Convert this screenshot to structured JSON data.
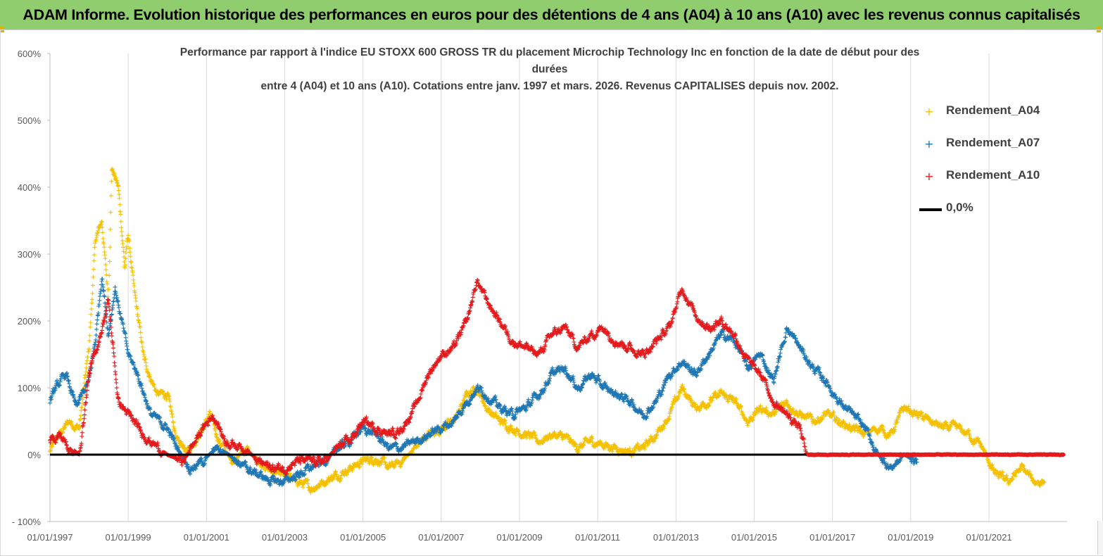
{
  "banner": {
    "title": "ADAM Informe. Evolution historique des performances en euros pour des détentions de 4 ans (A04) à 10 ans (A10) avec les revenus connus capitalisés"
  },
  "chart_data": {
    "type": "scatter",
    "title_lines": [
      "Performance par rapport à l'indice EU STOXX 600 GROSS TR  du placement Microchip Technology Inc en fonction de la date de début pour des",
      "durées",
      "entre 4 (A04) et 10 ans (A10).  Cotations entre janv. 1997 et mars. 2026. Revenus CAPITALISES depuis nov. 2002."
    ],
    "xlabel": "",
    "ylabel": "",
    "x_range": [
      "1997-01-01",
      "2022-12-31"
    ],
    "ylim": [
      -100,
      600
    ],
    "y_ticks": [
      600,
      500,
      400,
      300,
      200,
      100,
      0,
      -100
    ],
    "y_tick_labels": [
      "600%",
      "500%",
      "400%",
      "300%",
      "200%",
      "100%",
      "0%",
      "- 100%"
    ],
    "x_tick_labels": [
      "01/01/1997",
      "01/01/1999",
      "01/01/2001",
      "01/01/2003",
      "01/01/2005",
      "01/01/2007",
      "01/01/2009",
      "01/01/2011",
      "01/01/2013",
      "01/01/2015",
      "01/01/2017",
      "01/01/2019",
      "01/01/2021"
    ],
    "grid": "vertical",
    "legend_position": "right",
    "series": [
      {
        "name": "Rendement_A04",
        "color": "#f5c000",
        "marker": "plus",
        "points": [
          [
            "1997-01",
            5
          ],
          [
            "1997-04",
            30
          ],
          [
            "1997-07",
            50
          ],
          [
            "1997-10",
            40
          ],
          [
            "1998-01",
            160
          ],
          [
            "1998-03",
            320
          ],
          [
            "1998-05",
            350
          ],
          [
            "1998-07",
            230
          ],
          [
            "1998-08",
            430
          ],
          [
            "1998-10",
            400
          ],
          [
            "1998-12",
            280
          ],
          [
            "1999-01",
            330
          ],
          [
            "1999-03",
            240
          ],
          [
            "1999-06",
            140
          ],
          [
            "1999-10",
            90
          ],
          [
            "2000-01",
            90
          ],
          [
            "2000-04",
            20
          ],
          [
            "2000-08",
            10
          ],
          [
            "2000-12",
            40
          ],
          [
            "2001-02",
            60
          ],
          [
            "2001-05",
            20
          ],
          [
            "2001-09",
            -10
          ],
          [
            "2002-01",
            10
          ],
          [
            "2002-05",
            -10
          ],
          [
            "2002-09",
            -30
          ],
          [
            "2003-01",
            -30
          ],
          [
            "2003-05",
            -40
          ],
          [
            "2003-09",
            -50
          ],
          [
            "2004-01",
            -40
          ],
          [
            "2004-05",
            -30
          ],
          [
            "2004-09",
            -20
          ],
          [
            "2005-01",
            -10
          ],
          [
            "2005-05",
            -5
          ],
          [
            "2005-09",
            -20
          ],
          [
            "2006-01",
            -10
          ],
          [
            "2006-05",
            10
          ],
          [
            "2006-09",
            30
          ],
          [
            "2007-01",
            40
          ],
          [
            "2007-05",
            50
          ],
          [
            "2007-09",
            90
          ],
          [
            "2007-12",
            100
          ],
          [
            "2008-03",
            70
          ],
          [
            "2008-07",
            50
          ],
          [
            "2008-11",
            40
          ],
          [
            "2009-03",
            30
          ],
          [
            "2009-07",
            20
          ],
          [
            "2009-11",
            30
          ],
          [
            "2010-03",
            25
          ],
          [
            "2010-07",
            10
          ],
          [
            "2010-11",
            20
          ],
          [
            "2011-03",
            15
          ],
          [
            "2011-07",
            10
          ],
          [
            "2011-11",
            5
          ],
          [
            "2012-03",
            10
          ],
          [
            "2012-07",
            30
          ],
          [
            "2012-11",
            60
          ],
          [
            "2013-03",
            100
          ],
          [
            "2013-07",
            70
          ],
          [
            "2013-11",
            80
          ],
          [
            "2014-03",
            90
          ],
          [
            "2014-07",
            80
          ],
          [
            "2014-11",
            50
          ],
          [
            "2015-03",
            70
          ],
          [
            "2015-07",
            60
          ],
          [
            "2015-11",
            80
          ],
          [
            "2016-03",
            60
          ],
          [
            "2016-07",
            50
          ],
          [
            "2016-11",
            60
          ],
          [
            "2017-03",
            50
          ],
          [
            "2017-07",
            40
          ],
          [
            "2017-11",
            30
          ],
          [
            "2018-03",
            40
          ],
          [
            "2018-07",
            30
          ],
          [
            "2018-11",
            70
          ],
          [
            "2019-03",
            60
          ],
          [
            "2019-07",
            50
          ],
          [
            "2019-11",
            40
          ],
          [
            "2020-03",
            40
          ],
          [
            "2020-07",
            30
          ],
          [
            "2020-11",
            10
          ],
          [
            "2021-03",
            -30
          ],
          [
            "2021-07",
            -40
          ],
          [
            "2021-11",
            -20
          ],
          [
            "2022-03",
            -40
          ],
          [
            "2022-06",
            -40
          ]
        ]
      },
      {
        "name": "Rendement_A07",
        "color": "#1f77b4",
        "marker": "plus",
        "points": [
          [
            "1997-01",
            80
          ],
          [
            "1997-03",
            100
          ],
          [
            "1997-06",
            120
          ],
          [
            "1997-09",
            70
          ],
          [
            "1998-01",
            110
          ],
          [
            "1998-03",
            170
          ],
          [
            "1998-05",
            270
          ],
          [
            "1998-07",
            180
          ],
          [
            "1998-09",
            250
          ],
          [
            "1998-11",
            200
          ],
          [
            "1999-01",
            150
          ],
          [
            "1999-04",
            120
          ],
          [
            "1999-08",
            60
          ],
          [
            "2000-01",
            40
          ],
          [
            "2000-04",
            10
          ],
          [
            "2000-08",
            -20
          ],
          [
            "2000-12",
            -10
          ],
          [
            "2001-04",
            10
          ],
          [
            "2001-08",
            0
          ],
          [
            "2002-01",
            -20
          ],
          [
            "2002-05",
            -30
          ],
          [
            "2002-09",
            -40
          ],
          [
            "2003-01",
            -40
          ],
          [
            "2003-05",
            -30
          ],
          [
            "2003-09",
            -20
          ],
          [
            "2004-01",
            -10
          ],
          [
            "2004-05",
            10
          ],
          [
            "2004-09",
            20
          ],
          [
            "2005-01",
            40
          ],
          [
            "2005-05",
            30
          ],
          [
            "2005-09",
            10
          ],
          [
            "2006-01",
            10
          ],
          [
            "2006-05",
            20
          ],
          [
            "2006-09",
            30
          ],
          [
            "2007-01",
            40
          ],
          [
            "2007-05",
            50
          ],
          [
            "2007-09",
            80
          ],
          [
            "2007-12",
            100
          ],
          [
            "2008-03",
            90
          ],
          [
            "2008-07",
            70
          ],
          [
            "2008-11",
            60
          ],
          [
            "2009-03",
            70
          ],
          [
            "2009-07",
            90
          ],
          [
            "2009-11",
            120
          ],
          [
            "2010-03",
            130
          ],
          [
            "2010-07",
            100
          ],
          [
            "2010-11",
            120
          ],
          [
            "2011-03",
            100
          ],
          [
            "2011-07",
            90
          ],
          [
            "2011-11",
            80
          ],
          [
            "2012-03",
            60
          ],
          [
            "2012-07",
            80
          ],
          [
            "2012-11",
            120
          ],
          [
            "2013-03",
            140
          ],
          [
            "2013-07",
            120
          ],
          [
            "2013-11",
            150
          ],
          [
            "2014-03",
            180
          ],
          [
            "2014-07",
            170
          ],
          [
            "2014-11",
            130
          ],
          [
            "2015-03",
            150
          ],
          [
            "2015-07",
            110
          ],
          [
            "2015-11",
            190
          ],
          [
            "2016-03",
            160
          ],
          [
            "2016-07",
            130
          ],
          [
            "2016-11",
            110
          ],
          [
            "2017-03",
            80
          ],
          [
            "2017-07",
            60
          ],
          [
            "2017-11",
            40
          ],
          [
            "2018-03",
            0
          ],
          [
            "2018-07",
            -20
          ],
          [
            "2018-11",
            0
          ],
          [
            "2019-03",
            -10
          ]
        ]
      },
      {
        "name": "Rendement_A10",
        "color": "#e41a1c",
        "marker": "plus",
        "points": [
          [
            "1997-01",
            20
          ],
          [
            "1997-04",
            30
          ],
          [
            "1997-07",
            10
          ],
          [
            "1997-10",
            0
          ],
          [
            "1998-01",
            120
          ],
          [
            "1998-04",
            170
          ],
          [
            "1998-07",
            230
          ],
          [
            "1998-10",
            80
          ],
          [
            "1999-01",
            60
          ],
          [
            "1999-04",
            40
          ],
          [
            "1999-08",
            20
          ],
          [
            "2000-01",
            0
          ],
          [
            "2000-06",
            -10
          ],
          [
            "2000-12",
            40
          ],
          [
            "2001-03",
            60
          ],
          [
            "2001-07",
            20
          ],
          [
            "2002-01",
            10
          ],
          [
            "2002-05",
            -10
          ],
          [
            "2002-09",
            -20
          ],
          [
            "2003-01",
            -20
          ],
          [
            "2003-05",
            -10
          ],
          [
            "2003-09",
            -10
          ],
          [
            "2004-01",
            -10
          ],
          [
            "2004-05",
            10
          ],
          [
            "2004-09",
            20
          ],
          [
            "2005-01",
            50
          ],
          [
            "2005-05",
            40
          ],
          [
            "2005-09",
            30
          ],
          [
            "2006-01",
            40
          ],
          [
            "2006-05",
            70
          ],
          [
            "2006-09",
            120
          ],
          [
            "2007-01",
            150
          ],
          [
            "2007-05",
            160
          ],
          [
            "2007-09",
            200
          ],
          [
            "2007-12",
            260
          ],
          [
            "2008-03",
            230
          ],
          [
            "2008-07",
            200
          ],
          [
            "2008-11",
            170
          ],
          [
            "2009-03",
            160
          ],
          [
            "2009-07",
            150
          ],
          [
            "2009-11",
            180
          ],
          [
            "2010-03",
            190
          ],
          [
            "2010-07",
            160
          ],
          [
            "2010-11",
            180
          ],
          [
            "2011-03",
            190
          ],
          [
            "2011-07",
            170
          ],
          [
            "2011-11",
            160
          ],
          [
            "2012-03",
            150
          ],
          [
            "2012-07",
            170
          ],
          [
            "2012-11",
            190
          ],
          [
            "2013-03",
            250
          ],
          [
            "2013-07",
            210
          ],
          [
            "2013-11",
            190
          ],
          [
            "2014-03",
            200
          ],
          [
            "2014-07",
            180
          ],
          [
            "2014-11",
            140
          ],
          [
            "2015-03",
            120
          ],
          [
            "2015-07",
            80
          ],
          [
            "2015-11",
            60
          ],
          [
            "2016-03",
            40
          ],
          [
            "2016-05",
            0
          ],
          [
            "2017-01",
            0
          ],
          [
            "2018-01",
            0
          ],
          [
            "2019-01",
            0
          ],
          [
            "2020-01",
            0
          ],
          [
            "2021-01",
            0
          ],
          [
            "2022-01",
            0
          ],
          [
            "2022-12",
            0
          ]
        ]
      }
    ],
    "reference_line": {
      "name": "0,0%",
      "value": 0,
      "color": "#000000"
    }
  },
  "legend": {
    "items": [
      {
        "label": "Rendement_A04",
        "color": "#f5c000",
        "marker": "+"
      },
      {
        "label": "Rendement_A07",
        "color": "#1f77b4",
        "marker": "+"
      },
      {
        "label": "Rendement_A10",
        "color": "#e41a1c",
        "marker": "+"
      },
      {
        "label": "0,0%",
        "color": "#000000",
        "marker": "line"
      }
    ]
  }
}
